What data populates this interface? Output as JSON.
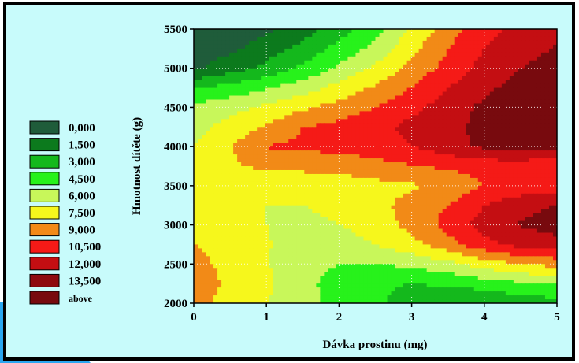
{
  "chart_data": {
    "type": "heatmap",
    "subtype": "filled-contour",
    "title": "",
    "xlabel": "Dávka prostinu (mg)",
    "ylabel": "Hmotnost dítěte (g)",
    "xlim": [
      0,
      5
    ],
    "ylim": [
      2000,
      5500
    ],
    "xticks": [
      "0",
      "1",
      "2",
      "3",
      "4",
      "5"
    ],
    "yticks": [
      "2000",
      "2500",
      "3000",
      "3500",
      "4000",
      "4500",
      "5000",
      "5500"
    ],
    "grid": true,
    "legend_position": "left",
    "background_color": "#c8fbfb",
    "levels": [
      {
        "label": "0,000",
        "color": "#1f5c3a"
      },
      {
        "label": "1,500",
        "color": "#0c7a1d"
      },
      {
        "label": "3,000",
        "color": "#14b81c"
      },
      {
        "label": "4,500",
        "color": "#27f21b"
      },
      {
        "label": "6,000",
        "color": "#c8f75a"
      },
      {
        "label": "7,500",
        "color": "#f6f71c"
      },
      {
        "label": "9,000",
        "color": "#f28a17"
      },
      {
        "label": "10,500",
        "color": "#f51a17"
      },
      {
        "label": "12,000",
        "color": "#c40e12"
      },
      {
        "label": "13,500",
        "color": "#8e0a0f"
      },
      {
        "label": "above",
        "color": "#780a0e"
      }
    ],
    "x": [
      0,
      0.5,
      1,
      1.5,
      2,
      2.5,
      3,
      3.5,
      4,
      4.5,
      5
    ],
    "y": [
      2000,
      2250,
      2500,
      2750,
      3000,
      3250,
      3500,
      3750,
      4000,
      4250,
      4500,
      4750,
      5000,
      5250,
      5500
    ],
    "z": [
      [
        10.0,
        8.0,
        7.5,
        6.5,
        5.5,
        4.8,
        3.8,
        3.0,
        3.2,
        3.6,
        3.9
      ],
      [
        10.5,
        8.5,
        7.8,
        6.5,
        5.3,
        4.8,
        4.5,
        4.8,
        5.2,
        5.8,
        6.2
      ],
      [
        9.5,
        8.5,
        7.6,
        6.5,
        6.0,
        6.0,
        6.3,
        7.0,
        8.2,
        9.0,
        9.5
      ],
      [
        9.0,
        8.3,
        7.6,
        6.8,
        6.8,
        7.5,
        8.5,
        10.0,
        11.5,
        12.5,
        13.0
      ],
      [
        8.5,
        8.0,
        7.5,
        7.2,
        7.5,
        8.2,
        9.5,
        11.0,
        12.6,
        13.6,
        14.1
      ],
      [
        7.8,
        7.5,
        7.5,
        7.5,
        7.8,
        8.5,
        9.6,
        10.5,
        12.0,
        13.0,
        13.6
      ],
      [
        7.5,
        7.6,
        7.8,
        7.8,
        8.0,
        8.5,
        8.8,
        9.3,
        10.5,
        11.0,
        10.8
      ],
      [
        7.5,
        8.7,
        9.4,
        9.5,
        9.7,
        10.0,
        10.4,
        10.8,
        11.2,
        11.2,
        11.0
      ],
      [
        7.5,
        8.9,
        10.6,
        10.8,
        11.0,
        11.2,
        12.0,
        13.0,
        13.8,
        14.0,
        14.0
      ],
      [
        7.0,
        8.0,
        9.2,
        10.5,
        11.0,
        11.5,
        12.5,
        13.2,
        13.8,
        14.2,
        14.4
      ],
      [
        6.5,
        7.0,
        7.8,
        8.7,
        9.6,
        10.5,
        11.5,
        12.8,
        13.8,
        14.4,
        14.6
      ],
      [
        4.3,
        5.0,
        5.8,
        6.8,
        8.0,
        9.2,
        10.5,
        12.0,
        13.2,
        14.0,
        14.3
      ],
      [
        1.3,
        2.3,
        3.5,
        4.8,
        6.3,
        7.8,
        9.5,
        11.0,
        12.5,
        13.5,
        14.0
      ],
      [
        0.5,
        1.2,
        2.2,
        3.5,
        5.0,
        6.5,
        8.6,
        10.5,
        12.0,
        13.0,
        13.6
      ],
      [
        0.3,
        0.6,
        1.2,
        2.3,
        3.8,
        5.5,
        7.7,
        9.8,
        11.5,
        12.5,
        13.0
      ]
    ]
  }
}
